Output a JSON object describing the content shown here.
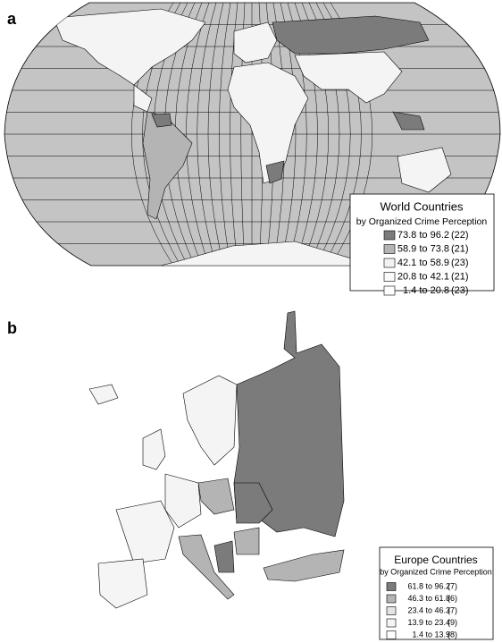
{
  "panel_a": {
    "label": "a",
    "legend": {
      "title": "World Countries",
      "subtitle": "by Organized Crime Perception",
      "classes": [
        {
          "range": "73.8 to 96.2",
          "count": "(22)",
          "color": "#7b7b7b"
        },
        {
          "range": "58.9 to 73.8",
          "count": "(21)",
          "color": "#b4b4b4"
        },
        {
          "range": "42.1 to 58.9",
          "count": "(23)",
          "color": "#f2f2f2"
        },
        {
          "range": "20.8 to 42.1",
          "count": "(21)",
          "color": "#fafafa"
        },
        {
          "range": "1.4 to 20.8",
          "count": "(23)",
          "color": "#ffffff"
        }
      ]
    }
  },
  "panel_b": {
    "label": "b",
    "legend": {
      "title": "Europe Countries",
      "subtitle": "by Organized Crime Perception",
      "classes": [
        {
          "range": "61.8 to 96.2",
          "count": "(7)",
          "color": "#7b7b7b"
        },
        {
          "range": "46.3 to 61.8",
          "count": "(6)",
          "color": "#b4b4b4"
        },
        {
          "range": "23.4 to 46.3",
          "count": "(7)",
          "color": "#e4e4e4"
        },
        {
          "range": "13.9 to 23.4",
          "count": "(9)",
          "color": "#f5f5f5"
        },
        {
          "range": "1.4 to 13.9",
          "count": "(8)",
          "color": "#ffffff"
        }
      ]
    }
  }
}
